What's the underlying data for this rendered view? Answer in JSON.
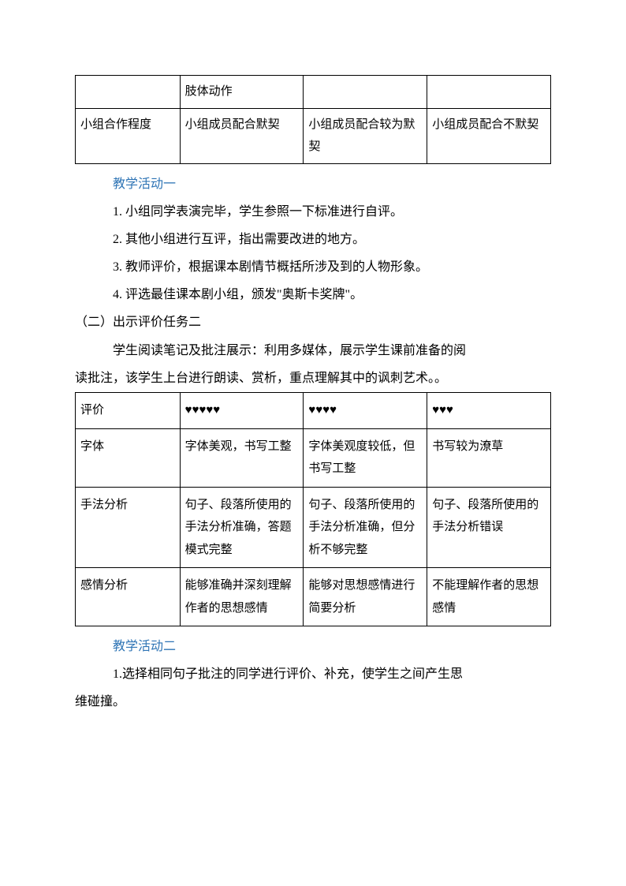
{
  "table1": {
    "rows": [
      {
        "c1": "",
        "c2": "肢体动作",
        "c3": "",
        "c4": ""
      },
      {
        "c1": "小组合作程度",
        "c2": "小组成员配合默契",
        "c3": "小组成员配合较为默契",
        "c4": "小组成员配合不默契"
      }
    ]
  },
  "heading1": "教学活动一",
  "list1": {
    "l1": "1. 小组同学表演完毕，学生参照一下标准进行自评。",
    "l2": "2. 其他小组进行互评，指出需要改进的地方。",
    "l3": "3. 教师评价，根据课本剧情节概括所涉及到的人物形象。",
    "l4": "4. 评选最佳课本剧小组，颁发\"奥斯卡奖牌\"。"
  },
  "section2": "（二）出示评价任务二",
  "para2a": "学生阅读笔记及批注展示：利用多媒体，展示学生课前准备的阅",
  "para2b": "读批注，该学生上台进行朗读、赏析，重点理解其中的讽刺艺术。。",
  "table2": {
    "header": {
      "c1": "评价",
      "c2": "♥♥♥♥♥",
      "c3": "♥♥♥♥",
      "c4": "♥♥♥"
    },
    "rows": [
      {
        "c1": "字体",
        "c2": "字体美观，书写工整",
        "c3": "字体美观度较低，但书写工整",
        "c4": "书写较为潦草"
      },
      {
        "c1": "手法分析",
        "c2": "句子、段落所使用的手法分析准确，答题模式完整",
        "c3": "句子、段落所使用的手法分析准确，但分析不够完整",
        "c4": "句子、段落所使用的手法分析错误"
      },
      {
        "c1": "感情分析",
        "c2": "能够准确并深刻理解作者的思想感情",
        "c3": "能够对思想感情进行简要分析",
        "c4": "不能理解作者的思想感情"
      }
    ]
  },
  "heading2": "教学活动二",
  "para3a": "1.选择相同句子批注的同学进行评价、补充，使学生之间产生思",
  "para3b": "维碰撞。"
}
